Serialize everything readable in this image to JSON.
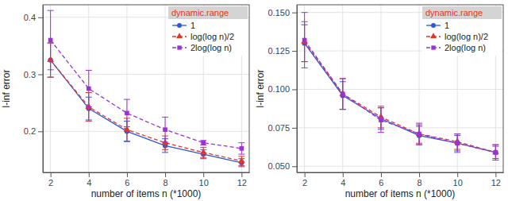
{
  "chart_data": [
    {
      "type": "line",
      "x_label": "number of items n (*1000)",
      "y_label": "l-inf error",
      "legend_title": "dynamic.range",
      "legend": "top-right",
      "grid": true,
      "x": [
        2,
        4,
        6,
        8,
        10,
        12
      ],
      "xlim": [
        1.6,
        12.4
      ],
      "xticks": [
        2,
        4,
        6,
        8,
        10,
        12
      ],
      "ylim": [
        0.128,
        0.422
      ],
      "yticks": [
        0.2,
        0.3,
        0.4
      ],
      "series": [
        {
          "name": "1",
          "color": "#2f56d6",
          "marker": "circle",
          "line_style": "solid",
          "values": [
            0.325,
            0.24,
            0.2,
            0.175,
            0.16,
            0.145
          ],
          "errors": [
            0.03,
            0.02,
            0.018,
            0.012,
            0.008,
            0.007
          ]
        },
        {
          "name": "log(log n)/2",
          "color": "#e0362c",
          "marker": "triangle",
          "line_style": "dashed",
          "values": [
            0.325,
            0.243,
            0.203,
            0.18,
            0.163,
            0.148
          ],
          "errors": [
            0.03,
            0.025,
            0.02,
            0.012,
            0.009,
            0.008
          ]
        },
        {
          "name": "2log(log n)",
          "color": "#9a32d8",
          "marker": "square",
          "line_style": "dashed",
          "values": [
            0.36,
            0.275,
            0.232,
            0.203,
            0.18,
            0.17
          ],
          "errors": [
            0.052,
            0.032,
            0.024,
            0.022,
            0.004,
            0.01
          ]
        }
      ]
    },
    {
      "type": "line",
      "x_label": "number of items n (*1000)",
      "y_label": "l-inf error",
      "legend_title": "dynamic.range",
      "legend": "top-right",
      "grid": true,
      "x": [
        2,
        4,
        6,
        8,
        10,
        12
      ],
      "xlim": [
        1.6,
        12.4
      ],
      "xticks": [
        2,
        4,
        6,
        8,
        10,
        12
      ],
      "ylim": [
        0.046,
        0.155
      ],
      "yticks": [
        {
          "value": 0.05,
          "label": "0.050"
        },
        {
          "value": 0.075,
          "label": "0.075"
        },
        {
          "value": 0.1,
          "label": "0.100"
        },
        {
          "value": 0.125,
          "label": "0.125"
        },
        {
          "value": 0.15,
          "label": "0.150"
        }
      ],
      "series": [
        {
          "name": "1",
          "color": "#2f56d6",
          "marker": "circle",
          "line_style": "solid",
          "values": [
            0.13,
            0.096,
            0.081,
            0.07,
            0.065,
            0.059
          ],
          "errors": [
            0.012,
            0.009,
            0.007,
            0.006,
            0.005,
            0.004
          ]
        },
        {
          "name": "log(log n)/2",
          "color": "#e0362c",
          "marker": "triangle",
          "line_style": "dashed",
          "values": [
            0.131,
            0.097,
            0.082,
            0.071,
            0.066,
            0.059
          ],
          "errors": [
            0.013,
            0.01,
            0.007,
            0.006,
            0.005,
            0.005
          ]
        },
        {
          "name": "2log(log n)",
          "color": "#9a32d8",
          "marker": "square",
          "line_style": "dashed",
          "values": [
            0.132,
            0.097,
            0.08,
            0.071,
            0.065,
            0.059
          ],
          "errors": [
            0.018,
            0.01,
            0.008,
            0.007,
            0.006,
            0.005
          ]
        }
      ]
    }
  ]
}
